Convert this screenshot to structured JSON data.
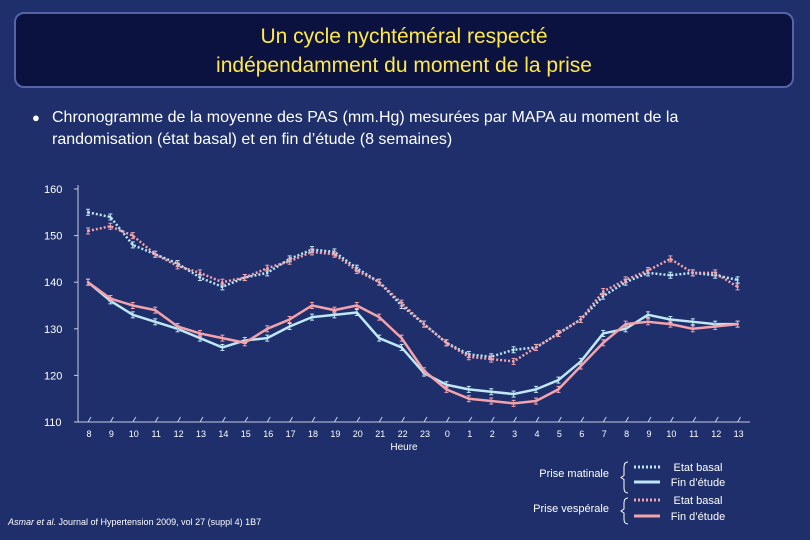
{
  "slide": {
    "title_line1": "Un cycle nychtéméral respecté",
    "title_line2": "indépendamment du moment de la prise",
    "bullet": "Chronogramme de la moyenne des PAS (mm.Hg) mesurées par MAPA au moment de la randomisation (état basal) et en fin d’étude (8 semaines)",
    "source_authors": "Asmar et al.",
    "source_rest": " Journal of Hypertension 2009, vol 27 (suppl 4) 1B7"
  },
  "colors": {
    "background": "#1e2f6b",
    "title_text": "#ffe84a",
    "morning": "#bfe8f4",
    "evening": "#f4a3ad"
  },
  "chart_data": {
    "type": "line",
    "title": "",
    "xlabel": "Heure",
    "ylabel": "",
    "ylim": [
      110,
      160
    ],
    "yticks": [
      110,
      120,
      130,
      140,
      150,
      160
    ],
    "categories": [
      "8",
      "9",
      "10",
      "11",
      "12",
      "13",
      "14",
      "15",
      "16",
      "17",
      "18",
      "19",
      "20",
      "21",
      "22",
      "23",
      "0",
      "1",
      "2",
      "3",
      "4",
      "5",
      "6",
      "7",
      "8",
      "9",
      "10",
      "11",
      "12",
      "13"
    ],
    "series": [
      {
        "name": "Prise matinale – Etat basal",
        "group": "Prise matinale",
        "label": "Etat basal",
        "style": "dotted",
        "color": "#bfe8f4",
        "values": [
          155,
          154,
          148,
          146,
          144,
          141,
          139,
          141,
          142,
          145,
          147,
          146.5,
          143,
          140,
          135,
          131,
          127,
          124.5,
          124,
          125.5,
          126,
          129,
          132,
          137,
          140,
          142,
          141.5,
          142,
          141.5,
          140.5
        ]
      },
      {
        "name": "Prise matinale – Fin d’étude",
        "group": "Prise matinale",
        "label": "Fin d’étude",
        "style": "solid",
        "color": "#bfe8f4",
        "values": [
          140,
          136,
          133,
          131.5,
          130,
          128,
          126,
          127.5,
          128,
          130.5,
          132.5,
          133,
          133.5,
          128,
          126,
          120.5,
          118,
          117,
          116.5,
          116,
          117,
          119,
          123,
          129,
          130,
          133,
          132,
          131.5,
          131,
          131
        ]
      },
      {
        "name": "Prise vespérale – Etat basal",
        "group": "Prise vespérale",
        "label": "Etat basal",
        "style": "dotted",
        "color": "#f4a3ad",
        "values": [
          151,
          152,
          150,
          146,
          143.5,
          142,
          140,
          141,
          143,
          144.5,
          146.5,
          146,
          142.5,
          140,
          135.5,
          131,
          127,
          124,
          123.5,
          123,
          126,
          129,
          132,
          138,
          140.5,
          142.5,
          145,
          142,
          142,
          139
        ]
      },
      {
        "name": "Prise vespérale – Fin d’étude",
        "group": "Prise vespérale",
        "label": "Fin d’étude",
        "style": "solid",
        "color": "#f4a3ad",
        "values": [
          140,
          136.5,
          135,
          134,
          130.5,
          129,
          128,
          127,
          130,
          132,
          135,
          134,
          135,
          132.5,
          128,
          121,
          117,
          115,
          114.5,
          114,
          114.5,
          117,
          122,
          127,
          131,
          131.5,
          131,
          130,
          130.5,
          131
        ]
      }
    ],
    "legend": {
      "position": "bottom-right",
      "groups": [
        "Prise matinale",
        "Prise vespérale"
      ],
      "entries": [
        "Etat basal",
        "Fin d’étude",
        "Etat basal",
        "Fin d’étude"
      ]
    }
  }
}
